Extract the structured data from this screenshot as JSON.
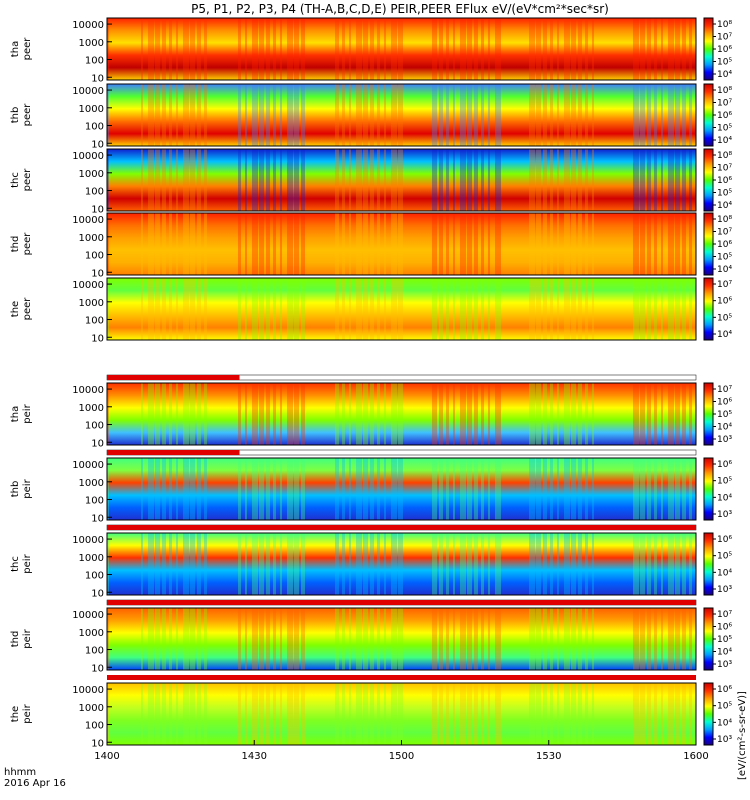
{
  "chart_data": {
    "type": "heatmap",
    "title": "P5, P1, P2, P3, P4 (TH-A,B,C,D,E) PEIR,PEER EFlux eV/(eV*cm²*sec*sr)",
    "colorbar_units": "[eV/(cm²-s-sr-eV)]",
    "x_axis": {
      "label_line1": "hhmm",
      "label_line2": "2016 Apr 16",
      "ticks": [
        "1400",
        "1430",
        "1500",
        "1530",
        "1600"
      ]
    },
    "y_ticks": [
      "10",
      "100",
      "1000",
      "10000"
    ],
    "colormap": [
      "#1a0082",
      "#0000ff",
      "#00a0ff",
      "#00ffd0",
      "#50ff00",
      "#ffff00",
      "#ffa000",
      "#ff3000",
      "#d00000"
    ],
    "panels": [
      {
        "label_top": "tha",
        "label_bottom": "peer",
        "cb_ticks": [
          "10⁴",
          "10⁵",
          "10⁶",
          "10⁷",
          "10⁸"
        ],
        "flag_bar": false
      },
      {
        "label_top": "thb",
        "label_bottom": "peer",
        "cb_ticks": [
          "10⁴",
          "10⁵",
          "10⁶",
          "10⁷",
          "10⁸"
        ],
        "flag_bar": false
      },
      {
        "label_top": "thc",
        "label_bottom": "peer",
        "cb_ticks": [
          "10⁴",
          "10⁵",
          "10⁶",
          "10⁷",
          "10⁸"
        ],
        "flag_bar": false
      },
      {
        "label_top": "thd",
        "label_bottom": "peer",
        "cb_ticks": [
          "10⁴",
          "10⁵",
          "10⁶",
          "10⁷",
          "10⁸"
        ],
        "flag_bar": false
      },
      {
        "label_top": "the",
        "label_bottom": "peer",
        "cb_ticks": [
          "10⁴",
          "10⁵",
          "10⁶",
          "10⁷"
        ],
        "flag_bar": false
      },
      {
        "label_top": "tha",
        "label_bottom": "peir",
        "cb_ticks": [
          "10³",
          "10⁴",
          "10⁵",
          "10⁶",
          "10⁷"
        ],
        "flag_bar": true,
        "flag_end": "1427"
      },
      {
        "label_top": "thb",
        "label_bottom": "peir",
        "cb_ticks": [
          "10³",
          "10⁴",
          "10⁵",
          "10⁶"
        ],
        "flag_bar": true,
        "flag_end": "1427"
      },
      {
        "label_top": "thc",
        "label_bottom": "peir",
        "cb_ticks": [
          "10³",
          "10⁴",
          "10⁵",
          "10⁶"
        ],
        "flag_bar": true,
        "flag_end": "1600"
      },
      {
        "label_top": "thd",
        "label_bottom": "peir",
        "cb_ticks": [
          "10³",
          "10⁴",
          "10⁵",
          "10⁶",
          "10⁷"
        ],
        "flag_bar": true,
        "flag_end": "1600"
      },
      {
        "label_top": "the",
        "label_bottom": "peir",
        "cb_ticks": [
          "10³",
          "10⁴",
          "10⁵",
          "10⁶"
        ],
        "flag_bar": false
      }
    ]
  }
}
